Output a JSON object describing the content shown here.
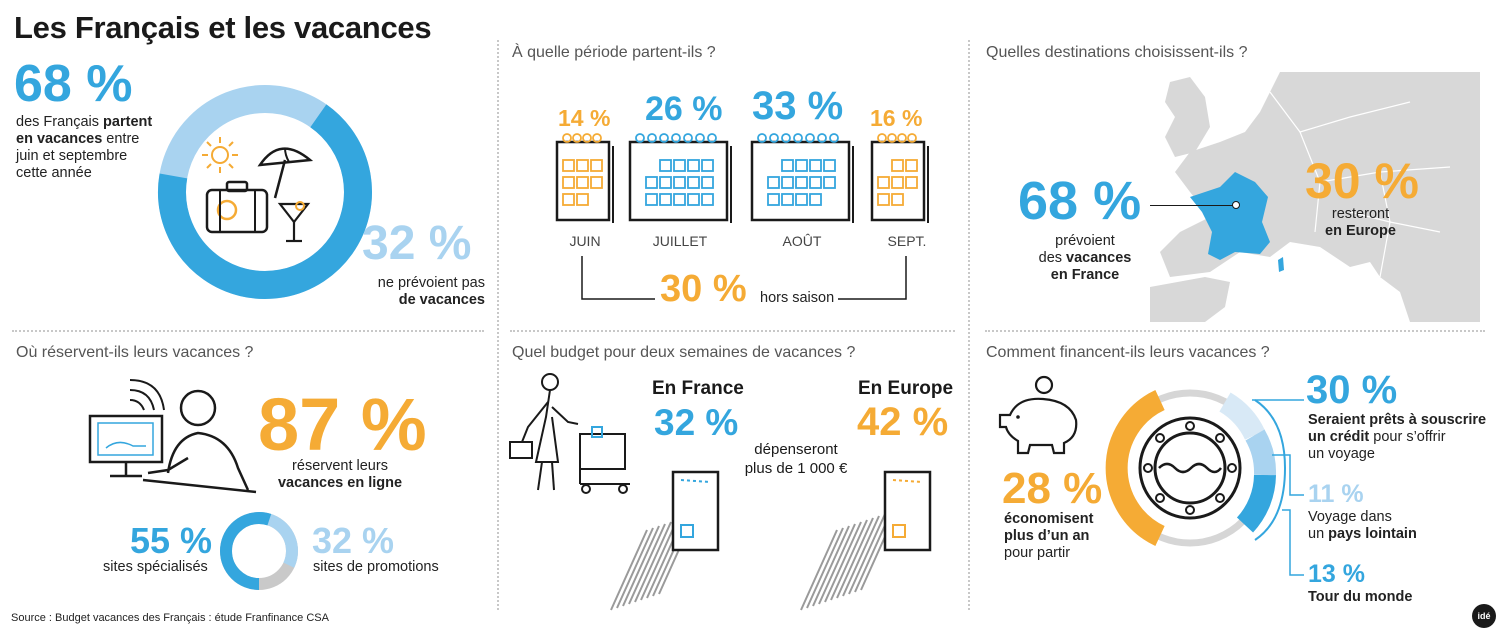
{
  "title": "Les Français et les vacances",
  "colors": {
    "blue": "#34a6de",
    "light_blue": "#a9d3f0",
    "orange": "#f5ab35",
    "grey": "#c9c9c9"
  },
  "section1": {
    "pct_main": "68 %",
    "text_a": "des Français ",
    "text_b": "partent en vacances",
    "text_c": " entre juin et septembre cette année",
    "pct_secondary": "32 %",
    "text_secondary_a": "ne prévoient pas",
    "text_secondary_b": "de vacances",
    "donut": {
      "main_share": 68,
      "secondary_share": 32
    },
    "icons": [
      "sun-icon",
      "suitcase-icon",
      "umbrella-icon",
      "cocktail-icon"
    ]
  },
  "section2": {
    "question": "À quelle période partent-ils ?",
    "months": [
      {
        "pct": "14 %",
        "label": "JUIN"
      },
      {
        "pct": "26 %",
        "label": "JUILLET"
      },
      {
        "pct": "33 %",
        "label": "AOÛT"
      },
      {
        "pct": "16 %",
        "label": "SEPT."
      }
    ],
    "off_pct": "30 %",
    "off_label": "hors saison"
  },
  "section3": {
    "question": "Quelles destinations choisissent-ils ?",
    "france_pct": "68 %",
    "france_a": "prévoient",
    "france_b": "des ",
    "france_c": "vacances",
    "france_d": "en France",
    "europe_pct": "30 %",
    "europe_a": "resteront",
    "europe_b": "en Europe"
  },
  "section4": {
    "question": "Où réservent-ils leurs vacances ?",
    "online_pct": "87 %",
    "online_a": "réservent leurs",
    "online_b": "vacances en ligne",
    "specialized_pct": "55 %",
    "specialized_label": "sites spécialisés",
    "promo_pct": "32 %",
    "promo_label": "sites de promotions"
  },
  "section5": {
    "question": "Quel budget pour deux semaines de vacances ?",
    "france_label": "En France",
    "france_pct": "32 %",
    "europe_label": "En Europe",
    "europe_pct": "42 %",
    "spend_a": "dépenseront",
    "spend_b": "plus de 1 000 €"
  },
  "section6": {
    "question": "Comment financent-ils leurs vacances ?",
    "save_pct": "28 %",
    "save_a": "économisent",
    "save_b": "plus d’un an",
    "save_c": "pour partir",
    "credit_pct": "30 %",
    "credit_a": "Seraient prêts à souscrire",
    "credit_b": "un crédit",
    "credit_c": " pour s’offrir",
    "credit_d": "un voyage",
    "far_pct": "11 %",
    "far_a": "Voyage dans",
    "far_b": "un ",
    "far_c": "pays lointain",
    "world_pct": "13 %",
    "world_label": "Tour du monde"
  },
  "source": "Source : Budget vacances des Français : étude Franfinance CSA",
  "logo": "idé"
}
